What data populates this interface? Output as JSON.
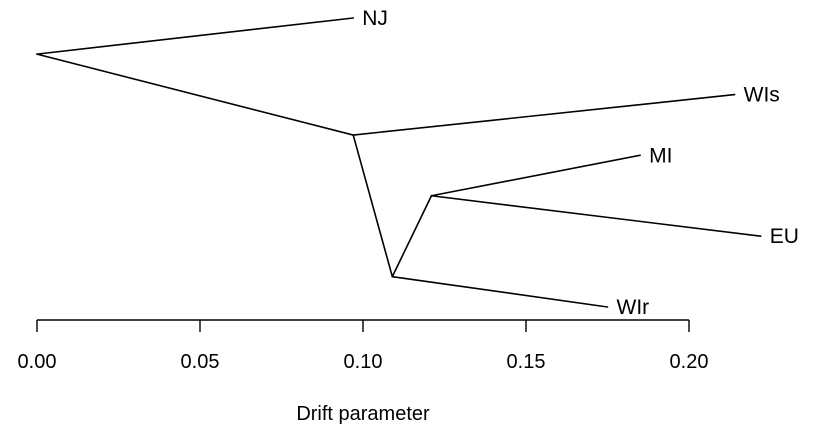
{
  "chart_data": {
    "type": "tree",
    "xlabel": "Drift parameter",
    "xlim": [
      0.0,
      0.2
    ],
    "ticks": [
      0.0,
      0.05,
      0.1,
      0.15,
      0.2
    ],
    "tick_labels": [
      "0.00",
      "0.05",
      "0.10",
      "0.15",
      "0.20"
    ],
    "nodes": [
      {
        "id": "root",
        "x": 0.0,
        "y": 0.125
      },
      {
        "id": "n1",
        "x": 0.097,
        "y": 0.405
      },
      {
        "id": "n2",
        "x": 0.109,
        "y": 0.895
      },
      {
        "id": "n3",
        "x": 0.121,
        "y": 0.615
      },
      {
        "id": "NJ",
        "x": 0.097,
        "y": 0.0,
        "label": "NJ"
      },
      {
        "id": "WIs",
        "x": 0.214,
        "y": 0.265,
        "label": "WIs"
      },
      {
        "id": "MI",
        "x": 0.185,
        "y": 0.475,
        "label": "MI"
      },
      {
        "id": "EU",
        "x": 0.222,
        "y": 0.755,
        "label": "EU"
      },
      {
        "id": "WIr",
        "x": 0.175,
        "y": 1.0,
        "label": "WIr"
      }
    ],
    "edges": [
      [
        "root",
        "NJ"
      ],
      [
        "root",
        "n1"
      ],
      [
        "n1",
        "WIs"
      ],
      [
        "n1",
        "n2"
      ],
      [
        "n2",
        "n3"
      ],
      [
        "n2",
        "WIr"
      ],
      [
        "n3",
        "MI"
      ],
      [
        "n3",
        "EU"
      ]
    ]
  }
}
